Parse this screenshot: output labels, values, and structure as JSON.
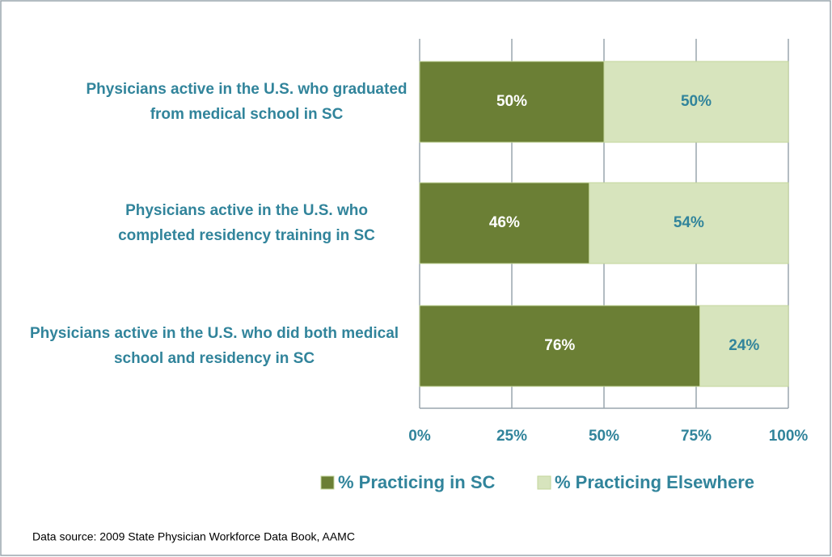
{
  "chart_data": {
    "type": "stacked_bar_horizontal",
    "categories": [
      "Physicians active in the U.S. who graduated from medical school in SC",
      "Physicians active in the U.S. who completed residency training in SC",
      "Physicians active in the U.S. who did both medical school and residency in SC"
    ],
    "series": [
      {
        "name": "% Practicing in SC",
        "color": "#6b7f35",
        "values": [
          50,
          46,
          76
        ],
        "value_labels": [
          "50%",
          "46%",
          "76%"
        ]
      },
      {
        "name": "% Practicing Elsewhere",
        "color": "#d7e4bd",
        "values": [
          50,
          54,
          24
        ],
        "value_labels": [
          "50%",
          "54%",
          "24%"
        ]
      }
    ],
    "xlim": [
      0,
      100
    ],
    "xticks": [
      {
        "value": 0,
        "label": "0%"
      },
      {
        "value": 25,
        "label": "25%"
      },
      {
        "value": 50,
        "label": "50%"
      },
      {
        "value": 75,
        "label": "75%"
      },
      {
        "value": 100,
        "label": "100%"
      }
    ],
    "grid": true,
    "legend": "bottom",
    "source": "Data source:  2009 State Physician Workforce Data Book, AAMC"
  }
}
